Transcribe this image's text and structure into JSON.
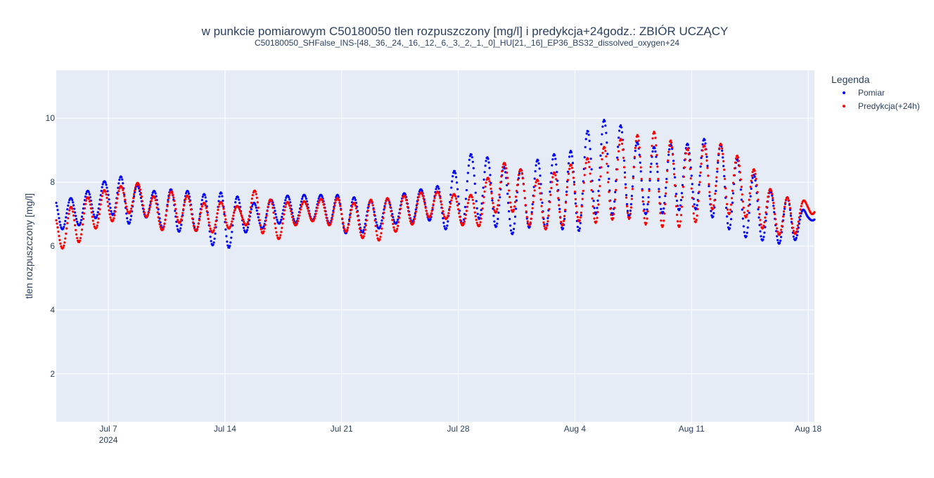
{
  "chart_data": {
    "type": "scatter",
    "title": "w punkcie pomiarowym C50180050 tlen rozpuszczony [mg/l] i predykcja+24godz.: ZBIÓR UCZĄCY",
    "subtitle": "C50180050_SHFalse_INS-[48,_36,_24,_16,_12,_6,_3,_2,_1,_0]_HU[21,_16]_EP36_BS32_dissolved_oxygen+24",
    "ylabel": "tlen rozpuszczony [mg/l]",
    "xlabel": "",
    "xlim": [
      "2024-07-03T21:00",
      "2024-08-18T09:00"
    ],
    "ylim": [
      0.5,
      11.5
    ],
    "y_ticks": [
      2,
      4,
      6,
      8,
      10
    ],
    "x_ticks": [
      {
        "date": "2024-07-07",
        "label": "Jul 7",
        "sublabel": "2024"
      },
      {
        "date": "2024-07-14",
        "label": "Jul 14",
        "sublabel": ""
      },
      {
        "date": "2024-07-21",
        "label": "Jul 21",
        "sublabel": ""
      },
      {
        "date": "2024-07-28",
        "label": "Jul 28",
        "sublabel": ""
      },
      {
        "date": "2024-08-04",
        "label": "Aug 4",
        "sublabel": ""
      },
      {
        "date": "2024-08-11",
        "label": "Aug 11",
        "sublabel": ""
      },
      {
        "date": "2024-08-18",
        "label": "Aug 18",
        "sublabel": ""
      }
    ],
    "sampling": "hourly",
    "grid": true,
    "legend": {
      "title": "Legenda",
      "placement": "right"
    },
    "series": [
      {
        "name": "Pomiar",
        "color": "#0000ff",
        "start": "2024-07-03T21:00",
        "daily": [
          {
            "date": "2024-07-04",
            "min": 6.5,
            "max": 7.5
          },
          {
            "date": "2024-07-05",
            "min": 6.6,
            "max": 7.5
          },
          {
            "date": "2024-07-06",
            "min": 6.8,
            "max": 7.8
          },
          {
            "date": "2024-07-07",
            "min": 7.1,
            "max": 8.1
          },
          {
            "date": "2024-07-08",
            "min": 6.6,
            "max": 8.2
          },
          {
            "date": "2024-07-09",
            "min": 7.0,
            "max": 7.8
          },
          {
            "date": "2024-07-10",
            "min": 6.6,
            "max": 7.7
          },
          {
            "date": "2024-07-11",
            "min": 6.4,
            "max": 7.8
          },
          {
            "date": "2024-07-12",
            "min": 6.6,
            "max": 7.7
          },
          {
            "date": "2024-07-13",
            "min": 6.1,
            "max": 7.6
          },
          {
            "date": "2024-07-14",
            "min": 5.8,
            "max": 7.7
          },
          {
            "date": "2024-07-15",
            "min": 6.4,
            "max": 7.5
          },
          {
            "date": "2024-07-16",
            "min": 6.5,
            "max": 7.3
          },
          {
            "date": "2024-07-17",
            "min": 6.7,
            "max": 7.5
          },
          {
            "date": "2024-07-18",
            "min": 6.7,
            "max": 7.6
          },
          {
            "date": "2024-07-19",
            "min": 6.8,
            "max": 7.6
          },
          {
            "date": "2024-07-20",
            "min": 6.8,
            "max": 7.6
          },
          {
            "date": "2024-07-21",
            "min": 6.4,
            "max": 7.6
          },
          {
            "date": "2024-07-22",
            "min": 6.4,
            "max": 7.5
          },
          {
            "date": "2024-07-23",
            "min": 6.5,
            "max": 7.4
          },
          {
            "date": "2024-07-24",
            "min": 6.7,
            "max": 7.5
          },
          {
            "date": "2024-07-25",
            "min": 6.7,
            "max": 7.7
          },
          {
            "date": "2024-07-26",
            "min": 6.9,
            "max": 7.8
          },
          {
            "date": "2024-07-27",
            "min": 6.5,
            "max": 7.9
          },
          {
            "date": "2024-07-28",
            "min": 6.6,
            "max": 8.5
          },
          {
            "date": "2024-07-29",
            "min": 6.9,
            "max": 9.0
          },
          {
            "date": "2024-07-30",
            "min": 6.7,
            "max": 8.7
          },
          {
            "date": "2024-07-31",
            "min": 6.3,
            "max": 8.4
          },
          {
            "date": "2024-08-01",
            "min": 6.6,
            "max": 8.4
          },
          {
            "date": "2024-08-02",
            "min": 6.5,
            "max": 8.8
          },
          {
            "date": "2024-08-03",
            "min": 6.6,
            "max": 8.9
          },
          {
            "date": "2024-08-04",
            "min": 6.3,
            "max": 9.0
          },
          {
            "date": "2024-08-05",
            "min": 7.0,
            "max": 9.8
          },
          {
            "date": "2024-08-06",
            "min": 7.0,
            "max": 10.0
          },
          {
            "date": "2024-08-07",
            "min": 6.9,
            "max": 9.7
          },
          {
            "date": "2024-08-08",
            "min": 7.0,
            "max": 9.1
          },
          {
            "date": "2024-08-09",
            "min": 7.0,
            "max": 9.1
          },
          {
            "date": "2024-08-10",
            "min": 7.1,
            "max": 9.2
          },
          {
            "date": "2024-08-11",
            "min": 7.2,
            "max": 9.2
          },
          {
            "date": "2024-08-12",
            "min": 7.0,
            "max": 9.4
          },
          {
            "date": "2024-08-13",
            "min": 6.6,
            "max": 9.1
          },
          {
            "date": "2024-08-14",
            "min": 6.3,
            "max": 8.6
          },
          {
            "date": "2024-08-15",
            "min": 6.2,
            "max": 8.1
          },
          {
            "date": "2024-08-16",
            "min": 6.1,
            "max": 7.6
          },
          {
            "date": "2024-08-17",
            "min": 6.0,
            "max": 7.5
          },
          {
            "date": "2024-08-18",
            "min": 6.8,
            "max": 7.0
          }
        ]
      },
      {
        "name": "Predykcja(+24h)",
        "color": "#ff0000",
        "start": "2024-07-03T21:00",
        "daily": [
          {
            "date": "2024-07-04",
            "min": 5.9,
            "max": 7.0
          },
          {
            "date": "2024-07-05",
            "min": 6.0,
            "max": 7.3
          },
          {
            "date": "2024-07-06",
            "min": 6.5,
            "max": 7.6
          },
          {
            "date": "2024-07-07",
            "min": 6.7,
            "max": 7.8
          },
          {
            "date": "2024-07-08",
            "min": 7.0,
            "max": 7.9
          },
          {
            "date": "2024-07-09",
            "min": 7.1,
            "max": 8.0
          },
          {
            "date": "2024-07-10",
            "min": 6.4,
            "max": 7.4
          },
          {
            "date": "2024-07-11",
            "min": 6.8,
            "max": 7.8
          },
          {
            "date": "2024-07-12",
            "min": 6.5,
            "max": 7.5
          },
          {
            "date": "2024-07-13",
            "min": 6.4,
            "max": 7.3
          },
          {
            "date": "2024-07-14",
            "min": 6.5,
            "max": 7.4
          },
          {
            "date": "2024-07-15",
            "min": 6.7,
            "max": 7.2
          },
          {
            "date": "2024-07-16",
            "min": 6.5,
            "max": 7.9
          },
          {
            "date": "2024-07-17",
            "min": 6.1,
            "max": 7.3
          },
          {
            "date": "2024-07-18",
            "min": 6.6,
            "max": 7.4
          },
          {
            "date": "2024-07-19",
            "min": 6.8,
            "max": 7.4
          },
          {
            "date": "2024-07-20",
            "min": 6.7,
            "max": 7.5
          },
          {
            "date": "2024-07-21",
            "min": 6.5,
            "max": 7.5
          },
          {
            "date": "2024-07-22",
            "min": 6.3,
            "max": 7.3
          },
          {
            "date": "2024-07-23",
            "min": 6.1,
            "max": 7.5
          },
          {
            "date": "2024-07-24",
            "min": 6.4,
            "max": 7.5
          },
          {
            "date": "2024-07-25",
            "min": 6.6,
            "max": 7.6
          },
          {
            "date": "2024-07-26",
            "min": 6.9,
            "max": 7.7
          },
          {
            "date": "2024-07-27",
            "min": 6.9,
            "max": 7.7
          },
          {
            "date": "2024-07-28",
            "min": 6.7,
            "max": 7.6
          },
          {
            "date": "2024-07-29",
            "min": 6.5,
            "max": 7.6
          },
          {
            "date": "2024-07-30",
            "min": 7.0,
            "max": 8.3
          },
          {
            "date": "2024-07-31",
            "min": 7.2,
            "max": 8.7
          },
          {
            "date": "2024-08-01",
            "min": 6.7,
            "max": 8.3
          },
          {
            "date": "2024-08-02",
            "min": 6.5,
            "max": 8.0
          },
          {
            "date": "2024-08-03",
            "min": 6.6,
            "max": 8.4
          },
          {
            "date": "2024-08-04",
            "min": 6.8,
            "max": 8.6
          },
          {
            "date": "2024-08-05",
            "min": 6.7,
            "max": 8.8
          },
          {
            "date": "2024-08-06",
            "min": 6.8,
            "max": 9.2
          },
          {
            "date": "2024-08-07",
            "min": 6.9,
            "max": 9.4
          },
          {
            "date": "2024-08-08",
            "min": 6.7,
            "max": 9.5
          },
          {
            "date": "2024-08-09",
            "min": 6.6,
            "max": 9.6
          },
          {
            "date": "2024-08-10",
            "min": 6.6,
            "max": 9.2
          },
          {
            "date": "2024-08-11",
            "min": 6.6,
            "max": 9.0
          },
          {
            "date": "2024-08-12",
            "min": 7.2,
            "max": 9.2
          },
          {
            "date": "2024-08-13",
            "min": 7.0,
            "max": 9.2
          },
          {
            "date": "2024-08-14",
            "min": 7.0,
            "max": 8.7
          },
          {
            "date": "2024-08-15",
            "min": 6.6,
            "max": 8.3
          },
          {
            "date": "2024-08-16",
            "min": 6.4,
            "max": 7.6
          },
          {
            "date": "2024-08-17",
            "min": 6.2,
            "max": 7.5
          },
          {
            "date": "2024-08-18",
            "min": 7.0,
            "max": 7.4
          }
        ]
      }
    ]
  }
}
